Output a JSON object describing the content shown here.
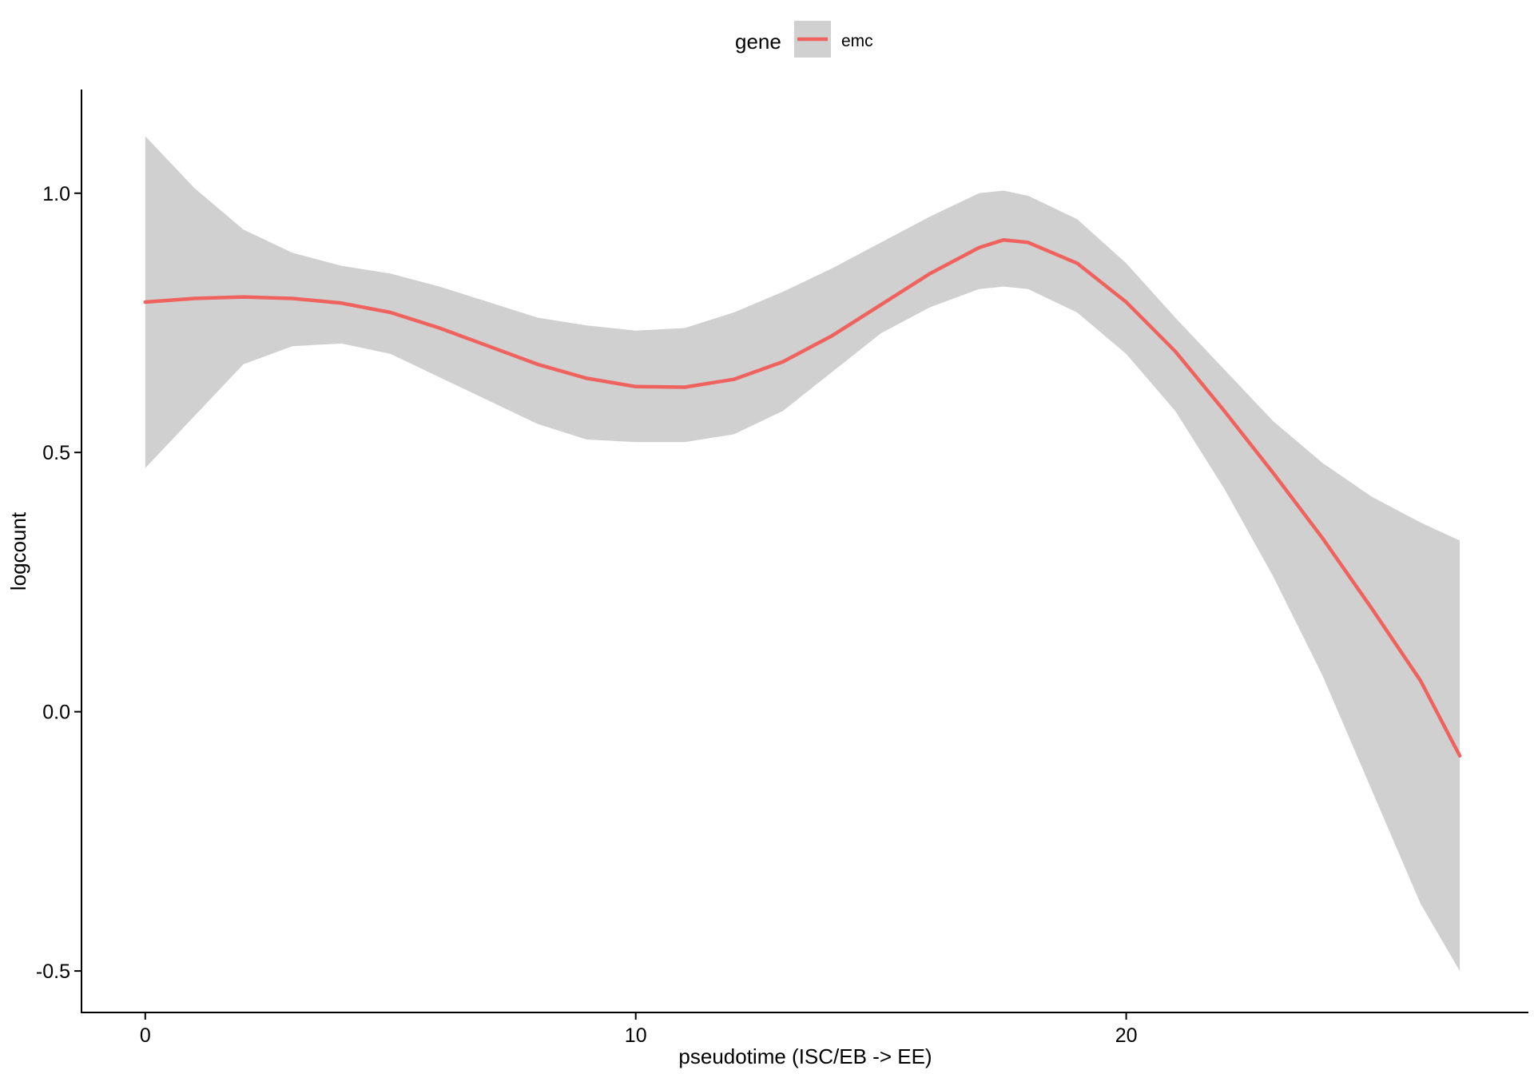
{
  "chart_data": {
    "type": "line",
    "title": "",
    "xlabel": "pseudotime (ISC/EB -> EE)",
    "ylabel": "logcount",
    "xlim": [
      -1.3,
      28.2
    ],
    "ylim": [
      -0.58,
      1.2
    ],
    "x_ticks": [
      0,
      10,
      20
    ],
    "x_tick_labels": [
      "0",
      "10",
      "20"
    ],
    "y_ticks": [
      -0.5,
      0.0,
      0.5,
      1.0
    ],
    "y_tick_labels": [
      "-0.5",
      "0.0",
      "0.5",
      "1.0"
    ],
    "grid": false,
    "legend": {
      "title": "gene",
      "position": "top",
      "entries": [
        "emc"
      ]
    },
    "colors": {
      "line": "#F0625D",
      "band": "#D0D0D0",
      "axis": "#000000"
    },
    "series": [
      {
        "name": "emc",
        "x": [
          0,
          1,
          2,
          3,
          4,
          5,
          6,
          7,
          8,
          9,
          10,
          11,
          12,
          13,
          14,
          15,
          16,
          17,
          17.5,
          18,
          19,
          20,
          21,
          22,
          23,
          24,
          25,
          26,
          26.8
        ],
        "y": [
          0.79,
          0.797,
          0.8,
          0.797,
          0.788,
          0.77,
          0.74,
          0.705,
          0.67,
          0.643,
          0.627,
          0.626,
          0.641,
          0.675,
          0.725,
          0.785,
          0.845,
          0.895,
          0.91,
          0.905,
          0.865,
          0.79,
          0.695,
          0.58,
          0.46,
          0.335,
          0.2,
          0.06,
          -0.085
        ],
        "lower": [
          0.47,
          0.57,
          0.67,
          0.705,
          0.71,
          0.69,
          0.645,
          0.6,
          0.555,
          0.525,
          0.52,
          0.52,
          0.535,
          0.58,
          0.655,
          0.73,
          0.78,
          0.815,
          0.82,
          0.815,
          0.77,
          0.69,
          0.58,
          0.43,
          0.26,
          0.07,
          -0.15,
          -0.37,
          -0.5
        ],
        "upper": [
          1.11,
          1.01,
          0.93,
          0.885,
          0.86,
          0.845,
          0.82,
          0.79,
          0.76,
          0.745,
          0.735,
          0.74,
          0.77,
          0.81,
          0.855,
          0.905,
          0.955,
          1.0,
          1.005,
          0.995,
          0.95,
          0.865,
          0.76,
          0.66,
          0.56,
          0.48,
          0.415,
          0.365,
          0.33
        ]
      }
    ]
  }
}
